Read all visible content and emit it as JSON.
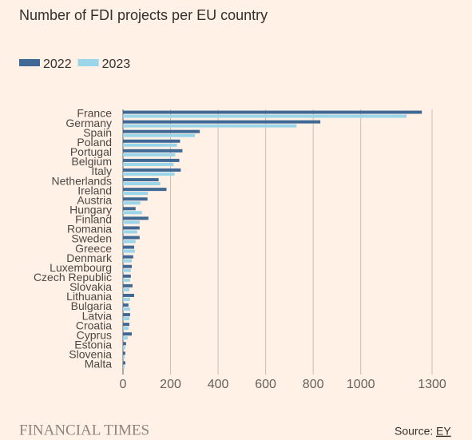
{
  "chart_data": {
    "type": "hbar",
    "title": "Number of FDI projects per EU country",
    "categories": [
      "France",
      "Germany",
      "Spain",
      "Poland",
      "Portugal",
      "Belgium",
      "Italy",
      "Netherlands",
      "Ireland",
      "Austria",
      "Hungary",
      "Finland",
      "Romania",
      "Sweden",
      "Greece",
      "Denmark",
      "Luxembourg",
      "Czech Republic",
      "Slovakia",
      "Lithuania",
      "Bulgaria",
      "Latvia",
      "Croatia",
      "Cyprus",
      "Estonia",
      "Slovenia",
      "Malta"
    ],
    "series": [
      {
        "name": "2022",
        "color": "#3f6894",
        "values": [
          1257,
          830,
          323,
          240,
          250,
          237,
          243,
          150,
          183,
          103,
          53,
          107,
          70,
          70,
          47,
          43,
          37,
          33,
          40,
          47,
          23,
          30,
          27,
          37,
          13,
          10,
          10
        ]
      },
      {
        "name": "2023",
        "color": "#9ad5ea",
        "values": [
          1193,
          730,
          303,
          227,
          220,
          213,
          217,
          157,
          105,
          73,
          80,
          70,
          60,
          53,
          50,
          37,
          33,
          30,
          27,
          30,
          30,
          27,
          23,
          20,
          10,
          7,
          7
        ]
      }
    ],
    "xlim": [
      0,
      1300
    ],
    "xticks": [
      0,
      200,
      400,
      600,
      800,
      1000,
      1300
    ],
    "grid": true,
    "brand": "FINANCIAL TIMES",
    "source_label": "Source:",
    "source_name": "EY"
  }
}
